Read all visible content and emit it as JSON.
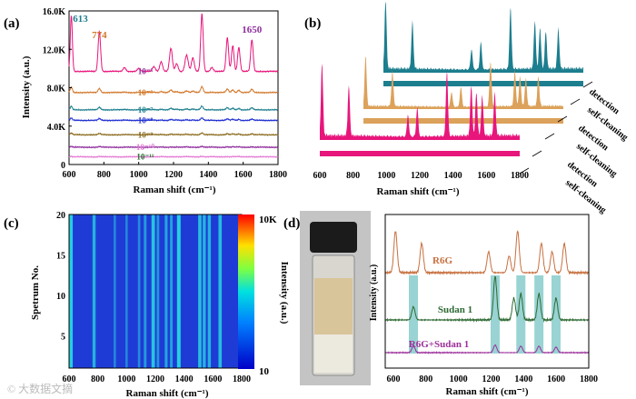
{
  "watermark": "© 大数据文摘",
  "colors": {
    "black": "#000000",
    "magenta": "#e8157b",
    "orange": "#d2782c",
    "teal": "#1c7e8e",
    "blue": "#1f2fd1",
    "olive": "#8a6a1d",
    "purple": "#8e2c9c",
    "pink": "#e57ad4",
    "green": "#236b2d",
    "heat_blue": "#1f3bd6",
    "heat_cyan": "#27d7e0",
    "tan": "#dca15a",
    "r6g_orange": "#c76f3e",
    "sudan_green": "#2e6a33",
    "mix_purple": "#9b2f9a",
    "highlight": "#80c8c8"
  },
  "chart_data": [
    {
      "id": "a",
      "panel_label": "(a)",
      "type": "line",
      "xlabel": "Raman shift (cm⁻¹)",
      "ylabel": "Intensity (a.u.)",
      "xlim": [
        600,
        1800
      ],
      "ylim": [
        0,
        16000
      ],
      "x_ticks": [
        "600",
        "800",
        "1000",
        "1200",
        "1400",
        "1600",
        "1800"
      ],
      "y_ticks": [
        "0",
        "4.0K",
        "8.0K",
        "12.0K",
        "16.0K"
      ],
      "peak_labels": [
        {
          "text": "613",
          "x": 613
        },
        {
          "text": "774",
          "x": 774
        },
        {
          "text": "1650",
          "x": 1650
        }
      ],
      "series": [
        {
          "name": "10⁻⁵",
          "color_key": "magenta",
          "baseline": 9700,
          "scale": 1.0
        },
        {
          "name": "10⁻⁶",
          "color_key": "orange",
          "baseline": 7500,
          "scale": 0.1
        },
        {
          "name": "10⁻⁷",
          "color_key": "teal",
          "baseline": 5700,
          "scale": 0.06
        },
        {
          "name": "10⁻⁸",
          "color_key": "blue",
          "baseline": 4600,
          "scale": 0.04
        },
        {
          "name": "10⁻⁹",
          "color_key": "olive",
          "baseline": 3100,
          "scale": 0.03
        },
        {
          "name": "10⁻¹⁰",
          "color_key": "purple",
          "baseline": 1800,
          "scale": 0.015
        },
        {
          "name": "10⁻¹¹",
          "color_key": "pink",
          "baseline": 800,
          "scale": 0.01
        }
      ],
      "series_label_color_keys": [
        "purple",
        "orange",
        "teal",
        "blue",
        "olive",
        "pink",
        "green"
      ],
      "peaks": [
        [
          613,
          5800,
          6
        ],
        [
          774,
          4200,
          7
        ],
        [
          918,
          400,
          8
        ],
        [
          1000,
          300,
          8
        ],
        [
          1087,
          500,
          9
        ],
        [
          1129,
          1000,
          8
        ],
        [
          1185,
          2400,
          8
        ],
        [
          1218,
          800,
          8
        ],
        [
          1275,
          1700,
          9
        ],
        [
          1311,
          1400,
          8
        ],
        [
          1363,
          6000,
          7
        ],
        [
          1420,
          400,
          8
        ],
        [
          1509,
          3500,
          7
        ],
        [
          1540,
          2700,
          7
        ],
        [
          1575,
          2500,
          7
        ],
        [
          1650,
          3300,
          7
        ]
      ]
    },
    {
      "id": "b",
      "panel_label": "(b)",
      "type": "area",
      "xlabel": "Raman shift (cm⁻¹)",
      "xlim": [
        600,
        1800
      ],
      "x_ticks": [
        "600",
        "800",
        "1000",
        "1200",
        "1400",
        "1600",
        "1800"
      ],
      "layer_labels": [
        "detection",
        "self-cleaning",
        "detection",
        "self-cleaning",
        "detection",
        "self-cleaning"
      ],
      "layers": [
        {
          "state": "detection",
          "color_key": "teal"
        },
        {
          "state": "self-cleaning",
          "color_key": "teal"
        },
        {
          "state": "detection",
          "color_key": "tan"
        },
        {
          "state": "self-cleaning",
          "color_key": "tan"
        },
        {
          "state": "detection",
          "color_key": "magenta"
        },
        {
          "state": "self-cleaning",
          "color_key": "magenta"
        }
      ]
    },
    {
      "id": "c",
      "panel_label": "(c)",
      "type": "heatmap",
      "xlabel": "Raman shift (cm⁻¹)",
      "ylabel": "Spetrum No.",
      "xlim": [
        600,
        1800
      ],
      "ylim": [
        1,
        20
      ],
      "x_ticks": [
        "600",
        "800",
        "1000",
        "1200",
        "1400",
        "1600",
        "1800"
      ],
      "y_ticks": [
        "5",
        "10",
        "15",
        "20"
      ],
      "colorbar_label": "Intensity (a.u.)",
      "colorbar_range": [
        "10",
        "10K"
      ],
      "stripes": [
        [
          613,
          1.0
        ],
        [
          774,
          0.7
        ],
        [
          918,
          0.25
        ],
        [
          1000,
          0.25
        ],
        [
          1087,
          0.3
        ],
        [
          1129,
          0.45
        ],
        [
          1185,
          0.9
        ],
        [
          1218,
          0.4
        ],
        [
          1275,
          0.55
        ],
        [
          1311,
          0.5
        ],
        [
          1363,
          1.0
        ],
        [
          1509,
          0.8
        ],
        [
          1540,
          0.7
        ],
        [
          1575,
          0.7
        ],
        [
          1650,
          0.8
        ]
      ]
    },
    {
      "id": "d",
      "panel_label": "(d)",
      "type": "line",
      "xlabel": "Raman shift (cm⁻¹)",
      "ylabel": "Intensity (a.u.)",
      "xlim": [
        550,
        1800
      ],
      "x_ticks": [
        "600",
        "800",
        "1000",
        "1200",
        "1400",
        "1600",
        "1800"
      ],
      "series": [
        {
          "name": "R6G",
          "color_key": "r6g_orange"
        },
        {
          "name": "Sudan 1",
          "color_key": "sudan_green"
        },
        {
          "name": "R6G+Sudan 1",
          "color_key": "mix_purple"
        }
      ],
      "highlight_peaks": [
        723,
        1225,
        1383,
        1494,
        1599
      ],
      "photo": {
        "subject": "vial",
        "description": "glass vial with liquid sample"
      }
    }
  ]
}
